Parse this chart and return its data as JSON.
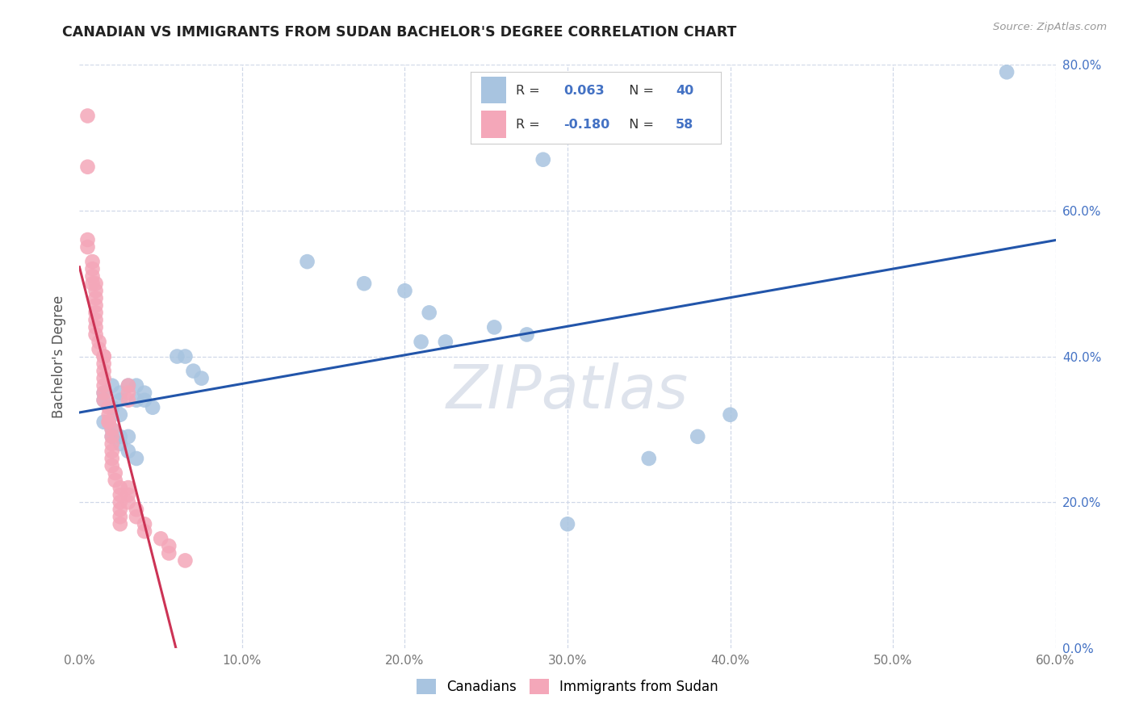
{
  "title": "CANADIAN VS IMMIGRANTS FROM SUDAN BACHELOR'S DEGREE CORRELATION CHART",
  "source": "Source: ZipAtlas.com",
  "ylabel": "Bachelor's Degree",
  "xlim": [
    0,
    0.6
  ],
  "ylim": [
    0,
    0.8
  ],
  "canadians_R": 0.063,
  "canadians_N": 40,
  "sudan_R": -0.18,
  "sudan_N": 58,
  "canadians_color": "#a8c4e0",
  "sudan_color": "#f4a7b9",
  "trendline_canadian_color": "#2255aa",
  "trendline_sudan_color": "#cc3355",
  "trendline_sudan_dashed_color": "#e8a0b0",
  "watermark_color": "#d0d8e8",
  "canadians_x": [
    0.57,
    0.285,
    0.14,
    0.175,
    0.2,
    0.215,
    0.255,
    0.275,
    0.21,
    0.225,
    0.06,
    0.065,
    0.07,
    0.075,
    0.03,
    0.035,
    0.04,
    0.035,
    0.04,
    0.045,
    0.02,
    0.025,
    0.025,
    0.02,
    0.015,
    0.015,
    0.02,
    0.025,
    0.015,
    0.02,
    0.02,
    0.025,
    0.03,
    0.025,
    0.03,
    0.035,
    0.4,
    0.38,
    0.35,
    0.3
  ],
  "canadians_y": [
    0.79,
    0.67,
    0.53,
    0.5,
    0.49,
    0.46,
    0.44,
    0.43,
    0.42,
    0.42,
    0.4,
    0.4,
    0.38,
    0.37,
    0.36,
    0.36,
    0.35,
    0.34,
    0.34,
    0.33,
    0.36,
    0.35,
    0.34,
    0.33,
    0.35,
    0.34,
    0.33,
    0.32,
    0.31,
    0.3,
    0.29,
    0.29,
    0.29,
    0.28,
    0.27,
    0.26,
    0.32,
    0.29,
    0.26,
    0.17
  ],
  "sudan_x": [
    0.005,
    0.005,
    0.005,
    0.005,
    0.008,
    0.008,
    0.008,
    0.008,
    0.01,
    0.01,
    0.01,
    0.01,
    0.01,
    0.01,
    0.01,
    0.01,
    0.012,
    0.012,
    0.015,
    0.015,
    0.015,
    0.015,
    0.015,
    0.015,
    0.015,
    0.015,
    0.018,
    0.018,
    0.018,
    0.018,
    0.02,
    0.02,
    0.02,
    0.02,
    0.02,
    0.02,
    0.022,
    0.022,
    0.025,
    0.025,
    0.025,
    0.025,
    0.025,
    0.025,
    0.03,
    0.03,
    0.03,
    0.03,
    0.03,
    0.03,
    0.035,
    0.035,
    0.04,
    0.04,
    0.05,
    0.055,
    0.055,
    0.065
  ],
  "sudan_y": [
    0.73,
    0.66,
    0.56,
    0.55,
    0.53,
    0.52,
    0.51,
    0.5,
    0.5,
    0.49,
    0.48,
    0.47,
    0.46,
    0.45,
    0.44,
    0.43,
    0.42,
    0.41,
    0.4,
    0.4,
    0.39,
    0.38,
    0.37,
    0.36,
    0.35,
    0.34,
    0.33,
    0.32,
    0.31,
    0.31,
    0.3,
    0.29,
    0.28,
    0.27,
    0.26,
    0.25,
    0.24,
    0.23,
    0.22,
    0.21,
    0.2,
    0.19,
    0.18,
    0.17,
    0.36,
    0.35,
    0.34,
    0.22,
    0.21,
    0.2,
    0.19,
    0.18,
    0.17,
    0.16,
    0.15,
    0.14,
    0.13,
    0.12
  ],
  "background_color": "#ffffff",
  "grid_color": "#d0d8e8",
  "tick_color": "#777777",
  "right_tick_color": "#4472c4"
}
